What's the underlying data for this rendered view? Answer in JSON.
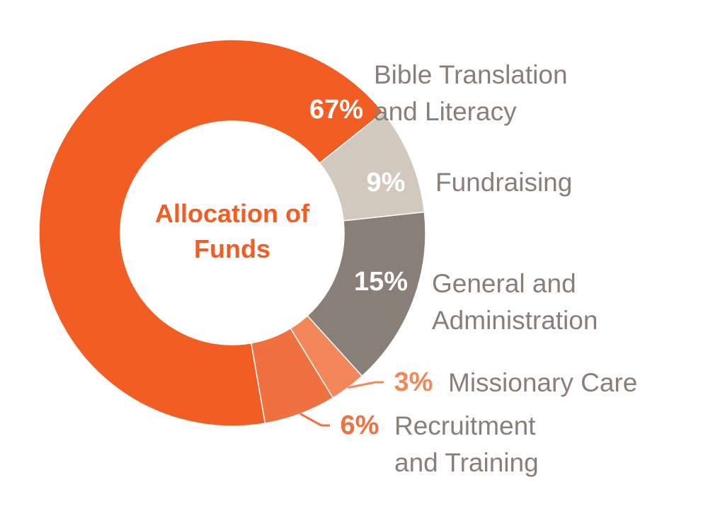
{
  "chart_data": {
    "type": "donut",
    "title": "Allocation of Funds",
    "categories": [
      "Bible Translation and Literacy",
      "Fundraising",
      "General and Administration",
      "Missionary Care",
      "Recruitment and Training"
    ],
    "values": [
      67,
      9,
      15,
      3,
      6
    ],
    "value_labels": [
      "67%",
      "9%",
      "15%",
      "3%",
      "6%"
    ],
    "colors": [
      "#f15d22",
      "#d3c8be",
      "#8a7f78",
      "#f4875a",
      "#f07040"
    ]
  }
}
